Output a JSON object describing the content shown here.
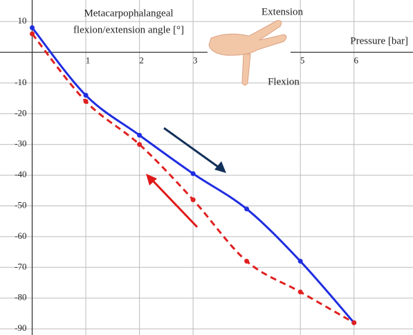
{
  "chart_data": {
    "type": "line",
    "title": [
      "Metacarpophalangeal",
      "flexion/extension angle [°]"
    ],
    "x_label": "Pressure [bar]",
    "annotations": [
      "Extension",
      "Flexion"
    ],
    "xlim": [
      -0.6,
      7.1
    ],
    "ylim": [
      -92,
      17
    ],
    "xticks": [
      1,
      2,
      3,
      5,
      6
    ],
    "yticks": [
      10,
      -10,
      -20,
      -30,
      -40,
      -50,
      -60,
      -70,
      -80,
      -90
    ],
    "grid": true,
    "series": [
      {
        "color": "#1f2de0",
        "dashed": false,
        "x": [
          0,
          1,
          2,
          3,
          4,
          5,
          6
        ],
        "values": [
          8,
          -14,
          -27,
          -39.5,
          -51,
          -68,
          -88
        ]
      },
      {
        "color": "#e02020",
        "dashed": true,
        "x": [
          0,
          1,
          2,
          3,
          4,
          5,
          6
        ],
        "values": [
          6,
          -16,
          -30,
          -48,
          -68,
          -78,
          -88
        ]
      }
    ]
  }
}
